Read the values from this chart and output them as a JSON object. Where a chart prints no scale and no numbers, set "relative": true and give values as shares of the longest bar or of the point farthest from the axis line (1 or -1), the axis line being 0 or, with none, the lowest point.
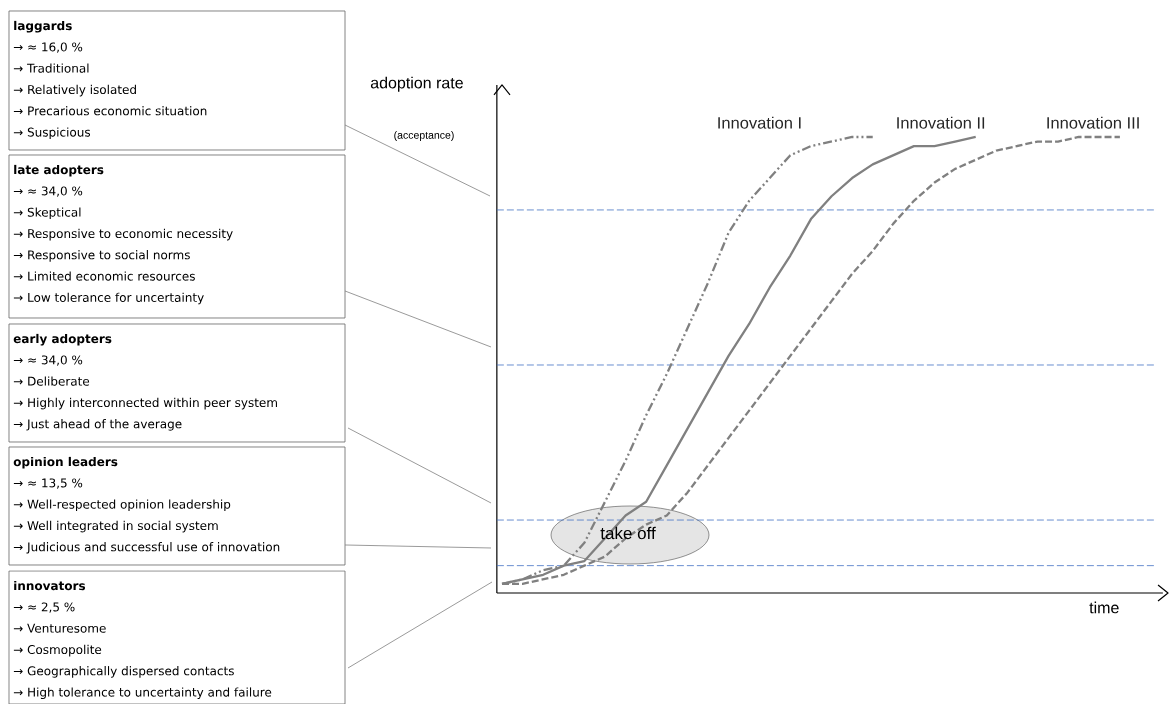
{
  "chart_data": {
    "type": "line",
    "relative": true,
    "xlabel": "time",
    "ylabel": "adoption rate",
    "categories": [
      null,
      null,
      null,
      null,
      null,
      null,
      null,
      null,
      null,
      null,
      null,
      null,
      null,
      null,
      null,
      null,
      null,
      null,
      null,
      null,
      null,
      null,
      null,
      null,
      null,
      null,
      null,
      null,
      null,
      null,
      null
    ],
    "series": [
      {
        "name": "Innovation I",
        "color": "#808080",
        "line_style": "dashdot",
        "values": [
          0.02,
          0.03,
          0.05,
          0.06,
          0.11,
          0.2,
          0.29,
          0.39,
          0.48,
          0.58,
          0.68,
          0.79,
          0.86,
          0.91,
          0.96,
          0.98,
          0.99,
          1.0,
          1.0,
          null,
          null,
          null,
          null,
          null,
          null,
          null,
          null,
          null,
          null,
          null,
          null
        ]
      },
      {
        "name": "Innovation II",
        "color": "#808080",
        "line_style": "solid",
        "values": [
          0.02,
          0.03,
          0.04,
          0.06,
          0.07,
          0.12,
          0.17,
          0.2,
          0.28,
          0.36,
          0.44,
          0.52,
          0.59,
          0.67,
          0.74,
          0.82,
          0.87,
          0.91,
          0.94,
          0.96,
          0.98,
          0.98,
          0.99,
          1.0,
          null,
          null,
          null,
          null,
          null,
          null,
          null
        ]
      },
      {
        "name": "Innovation III",
        "color": "#808080",
        "line_style": "dashed",
        "values": [
          0.02,
          0.02,
          0.03,
          0.04,
          0.06,
          0.08,
          0.12,
          0.15,
          0.17,
          0.22,
          0.28,
          0.34,
          0.4,
          0.46,
          0.52,
          0.58,
          0.64,
          0.7,
          0.75,
          0.81,
          0.86,
          0.9,
          0.93,
          0.95,
          0.97,
          0.98,
          0.99,
          0.99,
          1.0,
          1.0,
          1.0
        ]
      }
    ],
    "ref_lines": [
      {
        "axis": "y",
        "value": 0.06,
        "color": "#4472c4",
        "line_style": "dashed"
      },
      {
        "axis": "y",
        "value": 0.16,
        "color": "#4472c4",
        "line_style": "dashed"
      },
      {
        "axis": "y",
        "value": 0.5,
        "color": "#4472c4",
        "line_style": "dashed"
      },
      {
        "axis": "y",
        "value": 0.84,
        "color": "#4472c4",
        "line_style": "dashed"
      }
    ],
    "annotations": [
      "(acceptance)",
      "take off",
      "laggards",
      "→ ≈ 16,0 %",
      "→ Traditional",
      "→ Relatively isolated",
      "→ Precarious economic situation",
      "→ Suspicious",
      "late adopters",
      "→ ≈ 34,0 %",
      "→ Skeptical",
      "→ Responsive to economic necessity",
      "→ Responsive to social norms",
      "→ Limited economic resources",
      "→ Low tolerance for uncertainty",
      "early adopters",
      "→ ≈ 34,0 %",
      "→ Deliberate",
      "→ Highly interconnected within peer system",
      "→ Just ahead of the average",
      "opinion leaders",
      "→ ≈ 13,5 %",
      "→ Well-respected opinion leadership",
      "→ Well integrated in social system",
      "→ Judicious and successful use of innovation",
      "innovators",
      "→ ≈ 2,5 %",
      "→ Venturesome",
      "→ Cosmopolite",
      "→ Geographically dispersed contacts",
      "→ High tolerance to uncertainty and failure"
    ]
  }
}
